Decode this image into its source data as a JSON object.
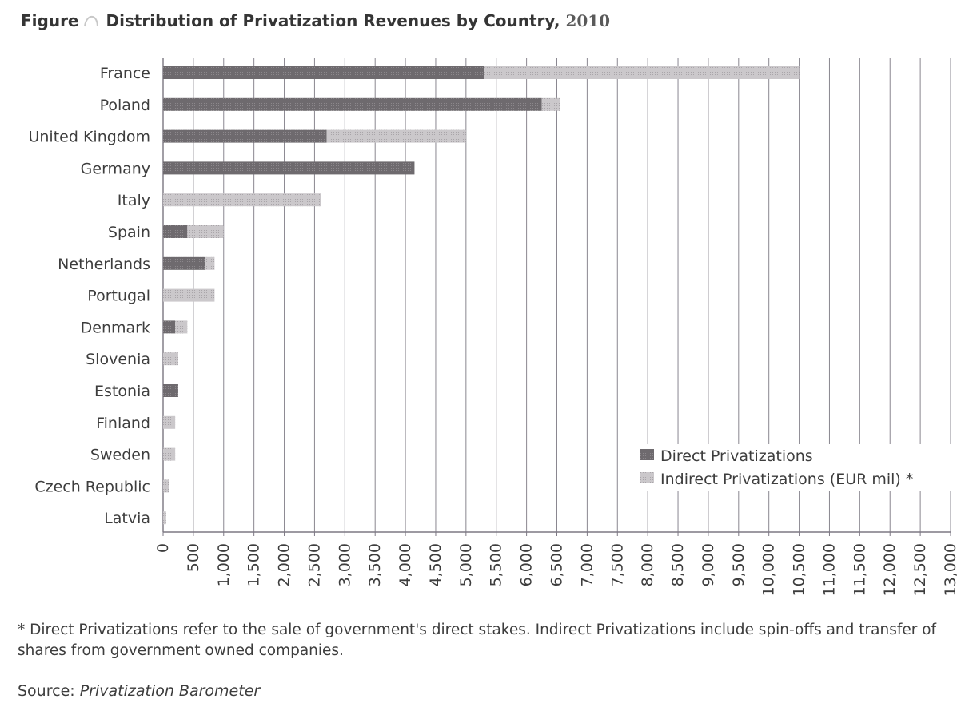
{
  "figure": {
    "label": "Figure",
    "title": "Distribution of Privatization Revenues by Country,",
    "year": "2010",
    "footnote": "* Direct Privatizations refer to the sale of government's direct stakes. Indirect Privatizations include spin-offs and transfer of shares from government owned companies.",
    "source_label": "Source:",
    "source_name": "Privatization Barometer"
  },
  "colors": {
    "direct": "#6e6a6e",
    "indirect": "#c9c6c9",
    "grid": "#8a8790",
    "axis": "#7d7884"
  },
  "chart_data": {
    "type": "bar",
    "orientation": "horizontal",
    "stacked": true,
    "categories": [
      "France",
      "Poland",
      "United Kingdom",
      "Germany",
      "Italy",
      "Spain",
      "Netherlands",
      "Portugal",
      "Denmark",
      "Slovenia",
      "Estonia",
      "Finland",
      "Sweden",
      "Czech Republic",
      "Latvia"
    ],
    "series": [
      {
        "name": "Direct Privatizations",
        "values": [
          5300,
          6250,
          2700,
          4150,
          0,
          400,
          700,
          0,
          200,
          0,
          250,
          0,
          0,
          0,
          0
        ]
      },
      {
        "name": "Indirect Privatizations (EUR mil) *",
        "values": [
          5200,
          300,
          2300,
          0,
          2600,
          600,
          150,
          850,
          200,
          250,
          0,
          200,
          200,
          100,
          50
        ]
      }
    ],
    "xlim": [
      0,
      13000
    ],
    "xticks": [
      "0",
      "500",
      "1,000",
      "1,500",
      "2,000",
      "2,500",
      "3,000",
      "3,500",
      "4,000",
      "4,500",
      "5,000",
      "5,500",
      "6,000",
      "6,500",
      "7,000",
      "7,500",
      "8,000",
      "8,500",
      "9,000",
      "9,500",
      "10,000",
      "10,500",
      "11,000",
      "11,500",
      "12,000",
      "12,500",
      "13,000"
    ],
    "grid": "vertical",
    "legend_position": "bottom-right"
  }
}
